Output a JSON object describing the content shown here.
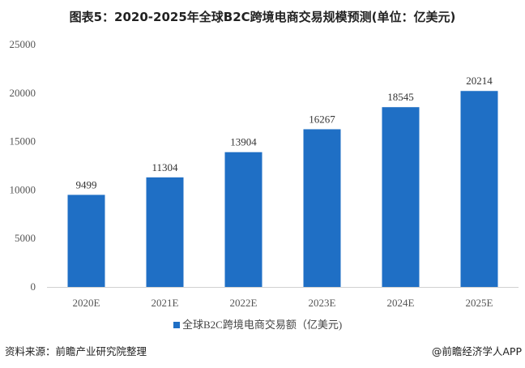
{
  "chart_data": {
    "type": "bar",
    "title": "图表5：2020-2025年全球B2C跨境电商交易规模预测(单位：亿美元)",
    "categories": [
      "2020E",
      "2021E",
      "2022E",
      "2023E",
      "2024E",
      "2025E"
    ],
    "series": [
      {
        "name": "全球B2C跨境电商交易额（亿美元)",
        "values": [
          9499,
          11304,
          13904,
          16267,
          18545,
          20214
        ]
      }
    ],
    "ylim": [
      0,
      25000
    ],
    "yticks": [
      "0",
      "5000",
      "10000",
      "15000",
      "20000",
      "25000"
    ],
    "grid": false,
    "legend": "bottom",
    "bar_color": "#1f6fc5",
    "xlabel": "",
    "ylabel": ""
  },
  "footer": {
    "source": "资料来源：前瞻产业研究院整理",
    "credit": "@前瞻经济学人APP"
  }
}
